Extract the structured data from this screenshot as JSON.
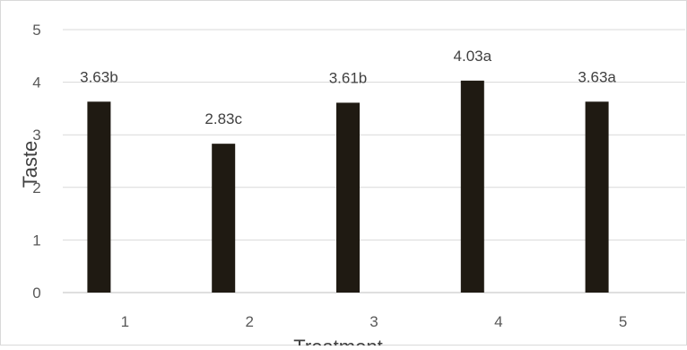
{
  "chart_data": {
    "type": "bar",
    "title": "",
    "xlabel": "Treatment",
    "ylabel": "Taste",
    "categories": [
      "1",
      "2",
      "3",
      "4",
      "5"
    ],
    "series": [
      {
        "values": [
          3.63,
          2.83,
          3.61,
          4.03,
          3.63
        ],
        "data_labels": [
          "3.63b",
          "2.83c",
          "3.61b",
          "4.03a",
          "3.63a"
        ],
        "color": "#1f1a12"
      }
    ],
    "ylim": [
      0,
      5
    ],
    "yticks": [
      "0",
      "1",
      "2",
      "3",
      "4",
      "5"
    ],
    "grid": true,
    "legend": "none"
  }
}
